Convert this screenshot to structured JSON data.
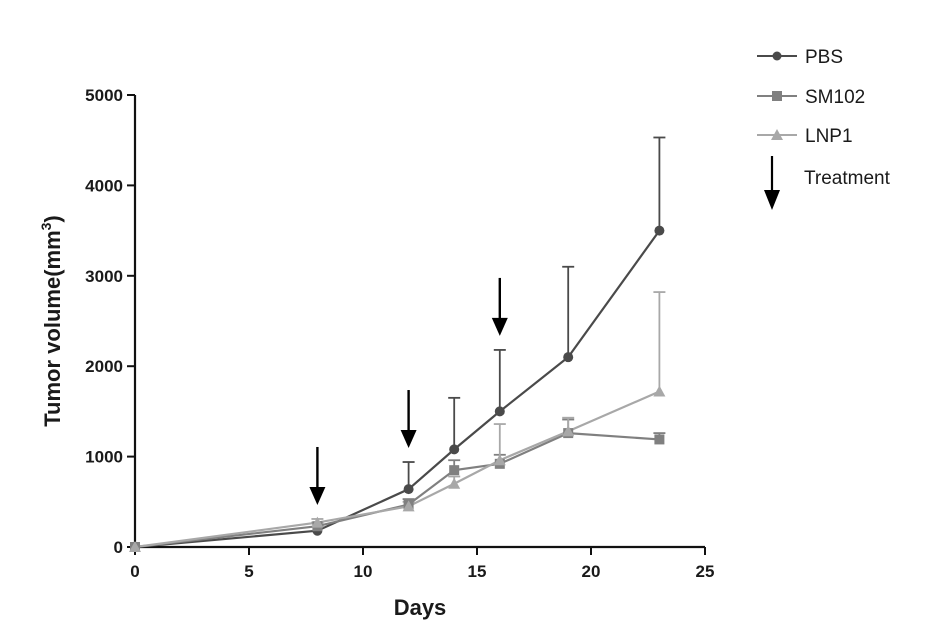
{
  "chart_data": {
    "type": "line",
    "xlabel": "Days",
    "ylabel": "Tumor volume(mm",
    "ylabel_sup": "3",
    "ylabel_close": ")",
    "xlim": [
      0,
      25
    ],
    "ylim": [
      0,
      5000
    ],
    "x_ticks": [
      0,
      5,
      10,
      15,
      20,
      25
    ],
    "y_ticks": [
      0,
      1000,
      2000,
      3000,
      4000,
      5000
    ],
    "grid": false,
    "legend_position": "top-right",
    "series": [
      {
        "name": "PBS",
        "marker": "circle",
        "color": "#4a4a4a",
        "x": [
          0,
          8,
          12,
          14,
          16,
          19,
          23
        ],
        "y": [
          0,
          180,
          640,
          1080,
          1500,
          2100,
          3500
        ],
        "err": [
          0,
          40,
          300,
          570,
          680,
          1000,
          1030
        ]
      },
      {
        "name": "SM102",
        "marker": "square",
        "color": "#808080",
        "x": [
          0,
          8,
          12,
          14,
          16,
          19,
          23
        ],
        "y": [
          0,
          230,
          470,
          850,
          920,
          1260,
          1190
        ],
        "err": [
          0,
          40,
          60,
          110,
          100,
          150,
          70
        ]
      },
      {
        "name": "LNP1",
        "marker": "triangle",
        "color": "#a8a8a8",
        "x": [
          0,
          8,
          12,
          14,
          16,
          19,
          23
        ],
        "y": [
          0,
          270,
          450,
          700,
          960,
          1280,
          1720
        ],
        "err": [
          0,
          40,
          50,
          80,
          400,
          150,
          1100
        ]
      }
    ],
    "treatment_label": "Treatment",
    "treatment_days": [
      8,
      12,
      16
    ]
  }
}
